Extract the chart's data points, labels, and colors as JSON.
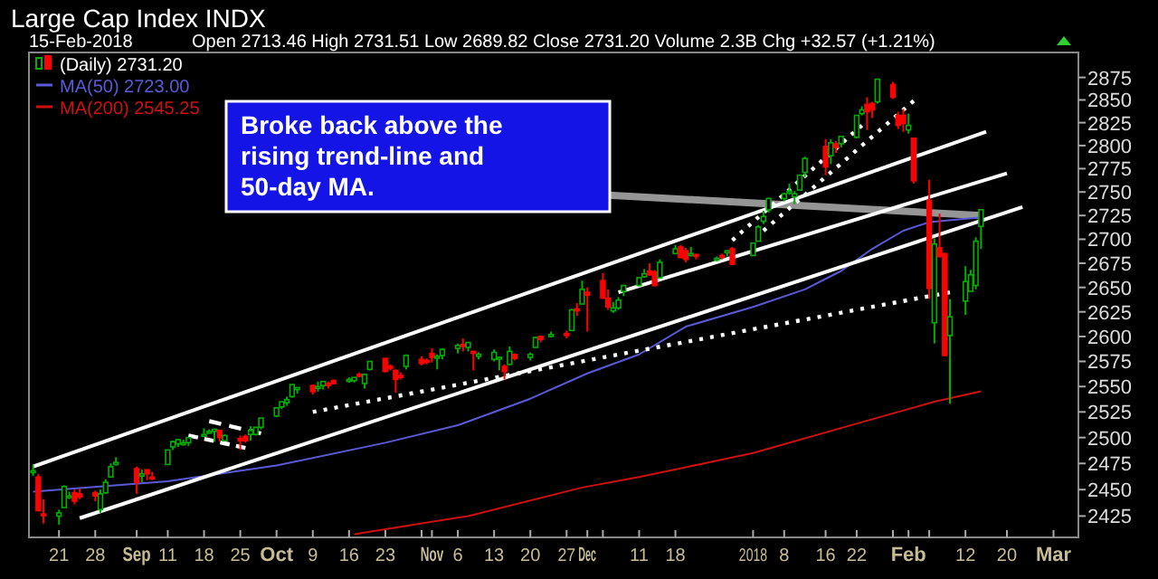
{
  "chart_data": {
    "type": "candlestick",
    "title": "Large Cap Index INDX",
    "subtitle": "15-Feb-2018",
    "annotations": [
      "Open 2713.46 High 2731.51 Low 2689.82 Close 2731.20 Volume 2.3B Chg +32.57 (+1.21%)",
      {
        "text": "Broke back above the rising trend-line and 50-day MA.",
        "x": "2018-02-15",
        "y": 2725
      }
    ],
    "x": [
      "2017-08-16",
      "2017-08-17",
      "2017-08-18",
      "2017-08-21",
      "2017-08-22",
      "2017-08-23",
      "2017-08-24",
      "2017-08-25",
      "2017-08-28",
      "2017-08-29",
      "2017-08-30",
      "2017-08-31",
      "2017-09-01",
      "2017-09-05",
      "2017-09-06",
      "2017-09-07",
      "2017-09-08",
      "2017-09-11",
      "2017-09-12",
      "2017-09-13",
      "2017-09-14",
      "2017-09-15",
      "2017-09-18",
      "2017-09-19",
      "2017-09-20",
      "2017-09-21",
      "2017-09-22",
      "2017-09-25",
      "2017-09-26",
      "2017-09-27",
      "2017-09-28",
      "2017-09-29",
      "2017-10-02",
      "2017-10-03",
      "2017-10-04",
      "2017-10-05",
      "2017-10-06",
      "2017-10-09",
      "2017-10-10",
      "2017-10-11",
      "2017-10-12",
      "2017-10-13",
      "2017-10-16",
      "2017-10-17",
      "2017-10-18",
      "2017-10-19",
      "2017-10-20",
      "2017-10-23",
      "2017-10-24",
      "2017-10-25",
      "2017-10-26",
      "2017-10-27",
      "2017-10-30",
      "2017-10-31",
      "2017-11-01",
      "2017-11-02",
      "2017-11-03",
      "2017-11-06",
      "2017-11-07",
      "2017-11-08",
      "2017-11-09",
      "2017-11-10",
      "2017-11-13",
      "2017-11-14",
      "2017-11-15",
      "2017-11-16",
      "2017-11-17",
      "2017-11-20",
      "2017-11-21",
      "2017-11-22",
      "2017-11-24",
      "2017-11-27",
      "2017-11-28",
      "2017-11-29",
      "2017-11-30",
      "2017-12-01",
      "2017-12-04",
      "2017-12-05",
      "2017-12-06",
      "2017-12-07",
      "2017-12-08",
      "2017-12-11",
      "2017-12-12",
      "2017-12-13",
      "2017-12-14",
      "2017-12-15",
      "2017-12-18",
      "2017-12-19",
      "2017-12-20",
      "2017-12-21",
      "2017-12-22",
      "2017-12-26",
      "2017-12-27",
      "2017-12-28",
      "2017-12-29",
      "2018-01-02",
      "2018-01-03",
      "2018-01-04",
      "2018-01-05",
      "2018-01-08",
      "2018-01-09",
      "2018-01-10",
      "2018-01-11",
      "2018-01-12",
      "2018-01-16",
      "2018-01-17",
      "2018-01-18",
      "2018-01-19",
      "2018-01-22",
      "2018-01-23",
      "2018-01-24",
      "2018-01-25",
      "2018-01-26",
      "2018-01-29",
      "2018-01-30",
      "2018-01-31",
      "2018-02-01",
      "2018-02-02",
      "2018-02-05",
      "2018-02-06",
      "2018-02-07",
      "2018-02-08",
      "2018-02-09",
      "2018-02-12",
      "2018-02-13",
      "2018-02-14",
      "2018-02-15"
    ],
    "xlim": [
      "2017-08-16",
      "2018-03-05"
    ],
    "xticks": [
      {
        "value": "2017-08-21",
        "label": "21"
      },
      {
        "value": "2017-08-28",
        "label": "28"
      },
      {
        "value": "2017-09-05",
        "label": "Sep"
      },
      {
        "value": "2017-09-11",
        "label": "11"
      },
      {
        "value": "2017-09-18",
        "label": "18"
      },
      {
        "value": "2017-09-25",
        "label": "25"
      },
      {
        "value": "2017-10-02",
        "label": "Oct"
      },
      {
        "value": "2017-10-09",
        "label": "9"
      },
      {
        "value": "2017-10-16",
        "label": "16"
      },
      {
        "value": "2017-10-23",
        "label": "23"
      },
      {
        "value": "2017-10-30",
        "label": null
      },
      {
        "value": "2017-11-01",
        "label": "Nov"
      },
      {
        "value": "2017-11-06",
        "label": "6"
      },
      {
        "value": "2017-11-13",
        "label": "13"
      },
      {
        "value": "2017-11-20",
        "label": "20"
      },
      {
        "value": "2017-11-27",
        "label": "27"
      },
      {
        "value": "2017-12-01",
        "label": "Dec"
      },
      {
        "value": "2017-12-04",
        "label": null
      },
      {
        "value": "2017-12-11",
        "label": "11"
      },
      {
        "value": "2017-12-18",
        "label": "18"
      },
      {
        "value": "2018-01-02",
        "label": "2018"
      },
      {
        "value": "2018-01-08",
        "label": "8"
      },
      {
        "value": "2018-01-16",
        "label": "16"
      },
      {
        "value": "2018-01-22",
        "label": "22"
      },
      {
        "value": "2018-01-29",
        "label": null
      },
      {
        "value": "2018-02-01",
        "label": "Feb"
      },
      {
        "value": "2018-02-05",
        "label": null
      },
      {
        "value": "2018-02-12",
        "label": "12"
      },
      {
        "value": "2018-02-20",
        "label": "20"
      },
      {
        "value": "2018-03-01",
        "label": "Mar"
      }
    ],
    "ylim": [
      2405,
      2903
    ],
    "log": true,
    "yticks": [
      2425,
      2450,
      2475,
      2500,
      2525,
      2550,
      2575,
      2600,
      2625,
      2650,
      2675,
      2700,
      2725,
      2750,
      2775,
      2800,
      2825,
      2850,
      2875
    ],
    "legend": "top left",
    "series": [
      {
        "type": "candlestick",
        "name": "(Daily) 2731.20",
        "ohlc": [
          [
            2468,
            2474,
            2463,
            2468
          ],
          [
            2462,
            2465,
            2430,
            2430
          ],
          [
            2427,
            2441,
            2418,
            2426
          ],
          [
            2425,
            2431,
            2417,
            2428
          ],
          [
            2433,
            2454,
            2433,
            2453
          ],
          [
            2444,
            2448,
            2441,
            2444
          ],
          [
            2447,
            2450,
            2436,
            2439
          ],
          [
            2446,
            2451,
            2441,
            2443
          ],
          [
            2447,
            2449,
            2439,
            2444
          ],
          [
            2431,
            2450,
            2428,
            2446
          ],
          [
            2447,
            2460,
            2446,
            2457
          ],
          [
            2462,
            2475,
            2462,
            2472
          ],
          [
            2474,
            2481,
            2473,
            2476
          ],
          [
            2470,
            2472,
            2446,
            2457
          ],
          [
            2463,
            2469,
            2457,
            2465
          ],
          [
            2469,
            2469,
            2459,
            2465
          ],
          [
            2462,
            2467,
            2459,
            2461
          ],
          [
            2474,
            2488,
            2474,
            2488
          ],
          [
            2491,
            2497,
            2488,
            2496
          ],
          [
            2494,
            2498,
            2491,
            2498
          ],
          [
            2494,
            2498,
            2492,
            2495
          ],
          [
            2495,
            2500,
            2492,
            2500
          ],
          [
            2502,
            2509,
            2502,
            2503
          ],
          [
            2506,
            2508,
            2504,
            2506
          ],
          [
            2506,
            2508,
            2496,
            2508
          ],
          [
            2507,
            2507,
            2496,
            2500
          ],
          [
            2497,
            2503,
            2497,
            2502
          ],
          [
            2499,
            2502,
            2488,
            2497
          ],
          [
            2501,
            2503,
            2495,
            2497
          ],
          [
            2503,
            2511,
            2497,
            2507
          ],
          [
            2503,
            2510,
            2502,
            2510
          ],
          [
            2510,
            2519,
            2508,
            2519
          ],
          [
            2521,
            2529,
            2520,
            2529
          ],
          [
            2530,
            2535,
            2528,
            2535
          ],
          [
            2534,
            2540,
            2531,
            2537
          ],
          [
            2540,
            2552,
            2539,
            2552
          ],
          [
            2547,
            2549,
            2543,
            2549
          ],
          [
            2551,
            2552,
            2542,
            2545
          ],
          [
            2549,
            2555,
            2545,
            2550
          ],
          [
            2551,
            2555,
            2547,
            2555
          ],
          [
            2553,
            2555,
            2548,
            2551
          ],
          [
            2556,
            2557,
            2552,
            2553
          ],
          [
            2556,
            2559,
            2554,
            2557
          ],
          [
            2556,
            2559,
            2554,
            2559
          ],
          [
            2562,
            2564,
            2559,
            2561
          ],
          [
            2553,
            2563,
            2548,
            2562
          ],
          [
            2567,
            2575,
            2566,
            2575
          ],
          [
            2578,
            2578,
            2564,
            2565
          ],
          [
            2570,
            2572,
            2566,
            2569
          ],
          [
            2566,
            2567,
            2544,
            2557
          ],
          [
            2561,
            2564,
            2557,
            2560
          ],
          [
            2570,
            2582,
            2567,
            2581
          ],
          [
            2577,
            2580,
            2571,
            2573
          ],
          [
            2576,
            2578,
            2572,
            2575
          ],
          [
            2583,
            2588,
            2574,
            2579
          ],
          [
            2580,
            2582,
            2567,
            2580
          ],
          [
            2581,
            2588,
            2577,
            2587
          ],
          [
            2588,
            2593,
            2583,
            2591
          ],
          [
            2592,
            2598,
            2585,
            2590
          ],
          [
            2589,
            2594,
            2585,
            2594
          ],
          [
            2585,
            2585,
            2566,
            2584
          ],
          [
            2580,
            2584,
            2577,
            2582
          ],
          [
            2577,
            2587,
            2575,
            2584
          ],
          [
            2578,
            2580,
            2566,
            2579
          ],
          [
            2570,
            2572,
            2557,
            2565
          ],
          [
            2572,
            2590,
            2572,
            2585
          ],
          [
            2582,
            2583,
            2576,
            2578
          ],
          [
            2579,
            2584,
            2576,
            2582
          ],
          [
            2589,
            2600,
            2589,
            2599
          ],
          [
            2600,
            2601,
            2594,
            2597
          ],
          [
            2600,
            2605,
            2599,
            2602
          ],
          [
            2603,
            2606,
            2598,
            2601
          ],
          [
            2606,
            2628,
            2606,
            2627
          ],
          [
            2628,
            2634,
            2621,
            2626
          ],
          [
            2633,
            2657,
            2633,
            2648
          ],
          [
            2645,
            2650,
            2605,
            2642
          ],
          [
            2657,
            2665,
            2639,
            2639
          ],
          [
            2639,
            2648,
            2627,
            2630
          ],
          [
            2626,
            2635,
            2624,
            2629
          ],
          [
            2629,
            2640,
            2627,
            2637
          ],
          [
            2646,
            2652,
            2641,
            2652
          ],
          [
            2652,
            2660,
            2651,
            2660
          ],
          [
            2661,
            2669,
            2660,
            2664
          ],
          [
            2667,
            2675,
            2662,
            2663
          ],
          [
            2666,
            2668,
            2651,
            2652
          ],
          [
            2660,
            2679,
            2659,
            2676
          ],
          [
            2685,
            2694,
            2685,
            2690
          ],
          [
            2692,
            2694,
            2680,
            2681
          ],
          [
            2688,
            2691,
            2676,
            2679
          ],
          [
            2683,
            2692,
            2682,
            2685
          ],
          [
            2684,
            2685,
            2679,
            2683
          ],
          [
            2680,
            2682,
            2677,
            2680
          ],
          [
            2683,
            2685,
            2679,
            2682
          ],
          [
            2686,
            2688,
            2682,
            2688
          ],
          [
            2690,
            2692,
            2673,
            2674
          ],
          [
            2683,
            2696,
            2683,
            2696
          ],
          [
            2698,
            2715,
            2698,
            2713
          ],
          [
            2719,
            2730,
            2716,
            2724
          ],
          [
            2731,
            2744,
            2728,
            2743
          ],
          [
            2743,
            2749,
            2740,
            2748
          ],
          [
            2751,
            2759,
            2747,
            2751
          ],
          [
            2745,
            2751,
            2737,
            2748
          ],
          [
            2752,
            2768,
            2752,
            2768
          ],
          [
            2771,
            2788,
            2766,
            2786
          ],
          [
            2799,
            2807,
            2768,
            2777
          ],
          [
            2789,
            2807,
            2780,
            2803
          ],
          [
            2802,
            2805,
            2792,
            2798
          ],
          [
            2802,
            2810,
            2798,
            2810
          ],
          [
            2809,
            2833,
            2808,
            2833
          ],
          [
            2835,
            2843,
            2833,
            2839
          ],
          [
            2845,
            2853,
            2817,
            2837
          ],
          [
            2846,
            2848,
            2830,
            2839
          ],
          [
            2848,
            2873,
            2846,
            2873
          ],
          [
            2867,
            2870,
            2851,
            2853
          ],
          [
            2833,
            2837,
            2818,
            2822
          ],
          [
            2833,
            2840,
            2815,
            2824
          ],
          [
            2817,
            2835,
            2813,
            2822
          ],
          [
            2808,
            2808,
            2759,
            2762
          ],
          [
            2741,
            2763,
            2638,
            2649
          ],
          [
            2614,
            2701,
            2593,
            2695
          ],
          [
            2691,
            2727,
            2681,
            2682
          ],
          [
            2685,
            2686,
            2580,
            2581
          ],
          [
            2601,
            2638,
            2533,
            2620
          ],
          [
            2636,
            2672,
            2622,
            2656
          ],
          [
            2646,
            2668,
            2646,
            2663
          ],
          [
            2652,
            2702,
            2648,
            2698
          ],
          [
            2713.46,
            2731.51,
            2689.82,
            2731.2
          ]
        ],
        "colors": [
          "#00b000",
          "#ff0000",
          "#ff0000",
          "#00b000",
          "#00b000",
          "#00b000",
          "#ff0000",
          "#ff0000",
          "#ff0000",
          "#00b000",
          "#00b000",
          "#00b000",
          "#00b000",
          "#ff0000",
          "#00b000",
          "#ff0000",
          "#ff0000",
          "#00b000",
          "#00b000",
          "#00b000",
          "#00b000",
          "#00b000",
          "#00b000",
          "#00b000",
          "#00b000",
          "#ff0000",
          "#00b000",
          "#ff0000",
          "#ff0000",
          "#00b000",
          "#00b000",
          "#00b000",
          "#00b000",
          "#00b000",
          "#00b000",
          "#00b000",
          "#00b000",
          "#ff0000",
          "#00b000",
          "#00b000",
          "#ff0000",
          "#ff0000",
          "#00b000",
          "#00b000",
          "#ff0000",
          "#00b000",
          "#00b000",
          "#ff0000",
          "#ff0000",
          "#ff0000",
          "#ff0000",
          "#00b000",
          "#ff0000",
          "#ff0000",
          "#ff0000",
          "#00b000",
          "#00b000",
          "#00b000",
          "#ff0000",
          "#00b000",
          "#ff0000",
          "#00b000",
          "#00b000",
          "#00b000",
          "#ff0000",
          "#00b000",
          "#ff0000",
          "#00b000",
          "#00b000",
          "#ff0000",
          "#00b000",
          "#ff0000",
          "#00b000",
          "#ff0000",
          "#00b000",
          "#ff0000",
          "#ff0000",
          "#ff0000",
          "#00b000",
          "#00b000",
          "#00b000",
          "#00b000",
          "#00b000",
          "#ff0000",
          "#ff0000",
          "#00b000",
          "#00b000",
          "#ff0000",
          "#ff0000",
          "#00b000",
          "#ff0000",
          "#00b000",
          "#ff0000",
          "#00b000",
          "#ff0000",
          "#00b000",
          "#00b000",
          "#00b000",
          "#00b000",
          "#00b000",
          "#00b000",
          "#00b000",
          "#00b000",
          "#00b000",
          "#ff0000",
          "#00b000",
          "#ff0000",
          "#00b000",
          "#00b000",
          "#00b000",
          "#ff0000",
          "#ff0000",
          "#00b000",
          "#ff0000",
          "#ff0000",
          "#ff0000",
          "#00b000",
          "#ff0000",
          "#ff0000",
          "#00b000",
          "#ff0000",
          "#ff0000",
          "#00b000",
          "#00b000",
          "#00b000",
          "#00b000",
          "#00b000"
        ]
      },
      {
        "type": "line",
        "name": "MA(50) 2723.00",
        "color": "#5a5ad8",
        "x": [
          "2017-08-16",
          "2017-08-21",
          "2017-09-11",
          "2017-10-02",
          "2017-10-23",
          "2017-11-06",
          "2017-11-20",
          "2017-12-01",
          "2017-12-11",
          "2017-12-20",
          "2018-01-02",
          "2018-01-12",
          "2018-01-19",
          "2018-01-25",
          "2018-01-31",
          "2018-02-05",
          "2018-02-15"
        ],
        "values": [
          2448,
          2450,
          2458,
          2473,
          2495,
          2512,
          2538,
          2563,
          2582,
          2610,
          2630,
          2648,
          2667,
          2690,
          2709,
          2718,
          2723
        ]
      },
      {
        "type": "line",
        "name": "MA(200) 2545.25",
        "color": "#d01010",
        "x": [
          "2017-10-17",
          "2017-11-08",
          "2017-11-30",
          "2017-12-11",
          "2018-01-02",
          "2018-01-23",
          "2018-02-06",
          "2018-02-15"
        ],
        "values": [
          2408,
          2425,
          2452,
          2462,
          2485,
          2515,
          2535,
          2545.25
        ]
      },
      {
        "type": "line",
        "color": "#ffffff",
        "line_style": "solid",
        "x": [
          "2017-08-16",
          "2018-02-16"
        ],
        "values": [
          2472,
          2815
        ]
      },
      {
        "type": "line",
        "color": "#ffffff",
        "line_style": "solid",
        "x": [
          "2017-12-07",
          "2018-02-20"
        ],
        "values": [
          2645,
          2770
        ]
      },
      {
        "type": "line",
        "color": "#ffffff",
        "line_style": "solid",
        "x": [
          "2017-08-25",
          "2018-02-23"
        ],
        "values": [
          2423,
          2734
        ]
      },
      {
        "type": "line",
        "color": "#ffffff",
        "line_style": "dotted",
        "x": [
          "2017-10-09",
          "2018-02-09"
        ],
        "values": [
          2525,
          2645
        ]
      },
      {
        "type": "line",
        "color": "#ffffff",
        "line_style": "dotted",
        "x": [
          "2017-12-29",
          "2018-01-23"
        ],
        "values": [
          2699,
          2822
        ]
      },
      {
        "type": "line",
        "color": "#ffffff",
        "line_style": "dotted",
        "x": [
          "2018-01-04",
          "2018-02-02"
        ],
        "values": [
          2709,
          2849
        ]
      },
      {
        "type": "line",
        "color": "#ffffff",
        "line_style": "dashed",
        "x": [
          "2017-09-19",
          "2017-09-29"
        ],
        "values": [
          2516,
          2504
        ]
      },
      {
        "type": "line",
        "color": "#ffffff",
        "line_style": "dashed",
        "x": [
          "2017-09-15",
          "2017-09-26"
        ],
        "values": [
          2502,
          2490
        ]
      }
    ]
  }
}
